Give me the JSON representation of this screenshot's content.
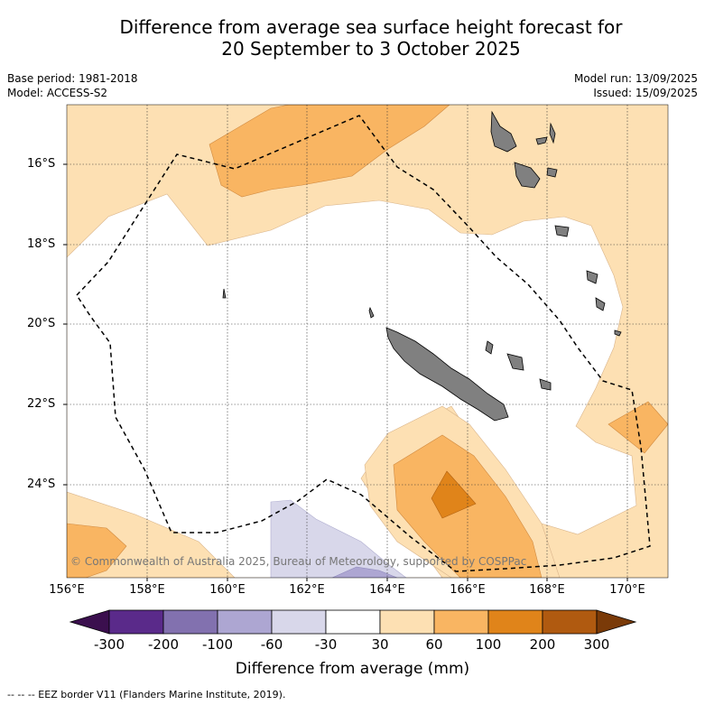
{
  "title_line1": "Difference from average sea surface height forecast for",
  "title_line2": "20 September to 3 October 2025",
  "meta_left": [
    "Base period: 1981-2018",
    "Model: ACCESS-S2"
  ],
  "meta_right": [
    "Model run: 13/09/2025",
    "Issued: 15/09/2025"
  ],
  "lat_ticks": [
    "16°S",
    "18°S",
    "20°S",
    "22°S",
    "24°S"
  ],
  "lon_ticks": [
    "156°E",
    "158°E",
    "160°E",
    "162°E",
    "164°E",
    "166°E",
    "168°E",
    "170°E"
  ],
  "copyright": "© Commonwealth of Australia 2025, Bureau of Meteorology, supported by COSPPac",
  "colorbar": {
    "labels": [
      "-300",
      "-200",
      "-100",
      "-60",
      "-30",
      "30",
      "60",
      "100",
      "200",
      "300"
    ],
    "colors": [
      "#3b0f4e",
      "#5a2a8a",
      "#8271af",
      "#ada6d2",
      "#d8d7ea",
      "#ffffff",
      "#fde0b3",
      "#f9b562",
      "#e0841a",
      "#b05a10",
      "#7a3a08"
    ],
    "title": "Difference from average (mm)"
  },
  "footnote": "-- -- -- EEZ border V11 (Flanders Marine Institute, 2019).",
  "colors": {
    "land": "#808080",
    "light_orange": "#fde0b3",
    "mid_orange": "#f9b562",
    "dark_orange": "#e0841a",
    "light_purple": "#d8d7ea",
    "mid_purple": "#ada6d2"
  }
}
